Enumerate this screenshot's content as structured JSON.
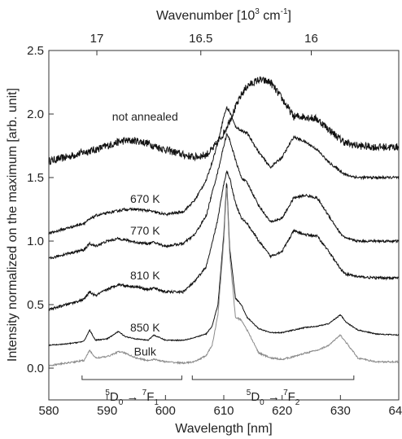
{
  "chart_data": {
    "type": "line",
    "xlabel": "Wavelength [nm]",
    "ylabel": "Intensity normalized on the maximum [arb. unit]",
    "x2label": "Wavenumber [10",
    "x2label_exp": "3",
    "x2label_unit": " cm",
    "x2label_unit_exp": "-1",
    "x2label_end": "]",
    "xlim": [
      580,
      640
    ],
    "ylim": [
      -0.25,
      2.5
    ],
    "x_ticks": [
      580,
      590,
      600,
      610,
      620,
      630,
      640
    ],
    "x_tick_labels": [
      "580",
      "590",
      "600",
      "610",
      "620",
      "630",
      "640"
    ],
    "y_ticks": [
      0.0,
      0.5,
      1.0,
      1.5,
      2.0,
      2.5
    ],
    "y_tick_labels": [
      "0.0",
      "0.5",
      "1.0",
      "1.5",
      "2.0",
      "2.5"
    ],
    "top_ticks": [
      17,
      16.5,
      16
    ],
    "top_tick_labels": [
      "17",
      "16.5",
      "16"
    ],
    "grid": false,
    "x_sample": [
      580,
      583,
      586,
      587,
      588,
      590,
      592,
      593,
      595,
      597,
      598,
      600,
      603,
      605,
      607,
      608,
      609,
      610,
      610.5,
      611,
      612,
      613,
      614,
      616,
      618,
      620,
      622,
      624,
      626,
      628,
      630,
      631,
      633,
      636,
      640
    ],
    "series": [
      {
        "name": "not annealed",
        "color": "#111111",
        "noise": 0.03,
        "values": [
          1.63,
          1.66,
          1.7,
          1.71,
          1.72,
          1.75,
          1.78,
          1.79,
          1.79,
          1.77,
          1.75,
          1.72,
          1.68,
          1.66,
          1.68,
          1.72,
          1.78,
          1.85,
          1.9,
          1.95,
          2.05,
          2.15,
          2.22,
          2.27,
          2.25,
          2.12,
          1.98,
          1.98,
          1.96,
          1.88,
          1.8,
          1.77,
          1.75,
          1.74,
          1.74
        ]
      },
      {
        "name": "670 K",
        "color": "#111111",
        "noise": 0.01,
        "values": [
          1.06,
          1.1,
          1.14,
          1.17,
          1.2,
          1.22,
          1.24,
          1.25,
          1.25,
          1.24,
          1.23,
          1.21,
          1.23,
          1.32,
          1.48,
          1.62,
          1.78,
          1.98,
          2.05,
          2.02,
          1.9,
          1.87,
          1.85,
          1.7,
          1.58,
          1.66,
          1.82,
          1.78,
          1.72,
          1.62,
          1.55,
          1.52,
          1.5,
          1.5,
          1.5
        ]
      },
      {
        "name": "770 K",
        "color": "#111111",
        "noise": 0.01,
        "values": [
          0.86,
          0.9,
          0.93,
          0.98,
          0.96,
          1.0,
          1.02,
          1.01,
          0.99,
          0.98,
          0.99,
          0.96,
          0.98,
          1.05,
          1.2,
          1.38,
          1.55,
          1.75,
          1.84,
          1.8,
          1.64,
          1.5,
          1.46,
          1.28,
          1.15,
          1.18,
          1.34,
          1.36,
          1.34,
          1.2,
          1.06,
          1.02,
          1.0,
          1.0,
          1.0
        ]
      },
      {
        "name": "810 K",
        "color": "#111111",
        "noise": 0.01,
        "values": [
          0.46,
          0.5,
          0.54,
          0.6,
          0.57,
          0.62,
          0.66,
          0.65,
          0.64,
          0.62,
          0.63,
          0.6,
          0.6,
          0.68,
          0.8,
          0.98,
          1.18,
          1.45,
          1.55,
          1.5,
          1.3,
          1.18,
          1.14,
          1.0,
          0.88,
          0.92,
          1.08,
          1.05,
          1.04,
          0.92,
          0.78,
          0.74,
          0.72,
          0.71,
          0.71
        ]
      },
      {
        "name": "850 K",
        "color": "#111111",
        "noise": 0.004,
        "values": [
          0.18,
          0.19,
          0.21,
          0.3,
          0.22,
          0.23,
          0.29,
          0.25,
          0.23,
          0.22,
          0.26,
          0.22,
          0.22,
          0.24,
          0.27,
          0.33,
          0.5,
          1.05,
          1.48,
          0.95,
          0.55,
          0.5,
          0.4,
          0.31,
          0.28,
          0.28,
          0.3,
          0.32,
          0.33,
          0.35,
          0.42,
          0.36,
          0.3,
          0.27,
          0.26
        ]
      },
      {
        "name": "Bulk",
        "color": "#8a8a8a",
        "noise": 0.006,
        "values": [
          0.02,
          0.04,
          0.06,
          0.14,
          0.08,
          0.09,
          0.13,
          0.12,
          0.08,
          0.06,
          0.07,
          0.05,
          0.04,
          0.05,
          0.1,
          0.18,
          0.42,
          1.0,
          1.45,
          0.9,
          0.4,
          0.38,
          0.3,
          0.12,
          0.08,
          0.07,
          0.09,
          0.12,
          0.14,
          0.18,
          0.26,
          0.2,
          0.08,
          0.05,
          0.05
        ]
      }
    ],
    "curve_labels": [
      {
        "text": "not annealed",
        "x": 596.5,
        "y": 1.95
      },
      {
        "text": "670 K",
        "x": 596.5,
        "y": 1.3
      },
      {
        "text": "770 K",
        "x": 596.5,
        "y": 1.05
      },
      {
        "text": "810 K",
        "x": 596.5,
        "y": 0.7
      },
      {
        "text": "850 K",
        "x": 596.5,
        "y": 0.29
      },
      {
        "text": "Bulk",
        "x": 596.5,
        "y": 0.1
      }
    ],
    "annotations": [
      {
        "bracket": [
          585.7,
          602.8
        ],
        "y": -0.09,
        "pre": "5",
        "a": "D",
        "a_sub": "0",
        "arrow": "→",
        "pre2": "7",
        "b": "F",
        "b_sub": "1"
      },
      {
        "bracket": [
          604.6,
          632.3
        ],
        "y": -0.09,
        "pre": "5",
        "a": "D",
        "a_sub": "0",
        "arrow": "→",
        "pre2": "7",
        "b": "F",
        "b_sub": "2"
      }
    ]
  }
}
